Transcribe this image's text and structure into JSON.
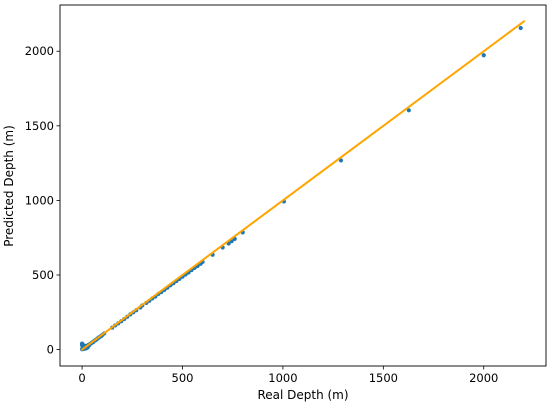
{
  "chart_data": {
    "type": "scatter",
    "xlabel": "Real Depth (m)",
    "ylabel": "Predicted Depth (m)",
    "xlim": [
      -110,
      2310
    ],
    "ylim": [
      -110,
      2310
    ],
    "x_ticks": [
      0,
      500,
      1000,
      1500,
      2000
    ],
    "y_ticks": [
      0,
      500,
      1000,
      1500,
      2000
    ],
    "grid": false,
    "legend": "none",
    "series": [
      {
        "type": "scatter",
        "color": "#1f77b4",
        "x": [
          0,
          0,
          0,
          2,
          4,
          5,
          8,
          10,
          12,
          15,
          18,
          20,
          25,
          28,
          30,
          35,
          40,
          45,
          50,
          55,
          60,
          65,
          70,
          75,
          80,
          85,
          90,
          95,
          100,
          110,
          150,
          165,
          180,
          195,
          210,
          225,
          240,
          255,
          270,
          290,
          300,
          320,
          335,
          350,
          365,
          380,
          395,
          410,
          425,
          440,
          455,
          470,
          485,
          500,
          515,
          530,
          545,
          560,
          575,
          590,
          600,
          650,
          700,
          730,
          745,
          760,
          800,
          1005,
          1289,
          1627,
          2000,
          2184
        ],
        "y": [
          2,
          30,
          40,
          8,
          15,
          22,
          28,
          5,
          18,
          12,
          24,
          8,
          20,
          15,
          30,
          28,
          38,
          42,
          48,
          50,
          58,
          62,
          66,
          72,
          78,
          82,
          88,
          90,
          97,
          108,
          147,
          162,
          176,
          190,
          205,
          220,
          236,
          250,
          264,
          282,
          296,
          313,
          327,
          343,
          356,
          373,
          386,
          400,
          415,
          431,
          445,
          460,
          474,
          489,
          503,
          517,
          533,
          548,
          560,
          575,
          588,
          636,
          684,
          711,
          727,
          742,
          786,
          993,
          1268,
          1604,
          1973,
          2156
        ]
      },
      {
        "type": "line",
        "color": "#ffa500",
        "x": [
          0,
          2200
        ],
        "y": [
          0,
          2200
        ]
      }
    ]
  }
}
